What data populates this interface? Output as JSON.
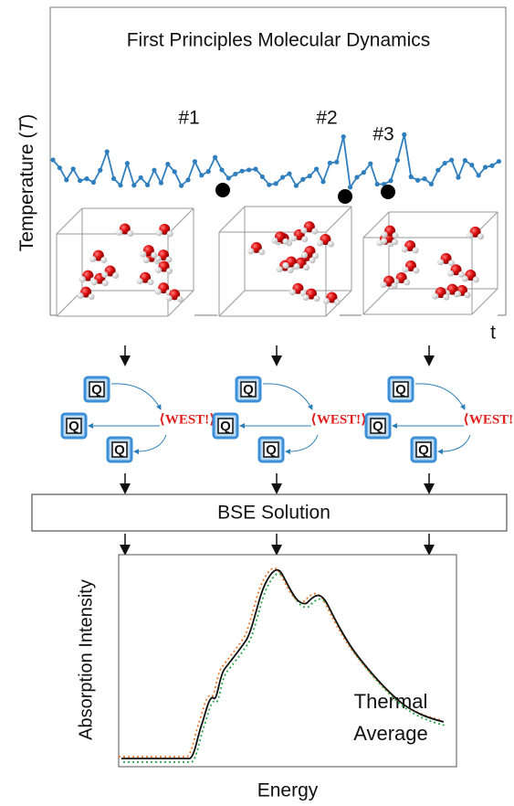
{
  "header": {
    "title": "First Principles Molecular Dynamics"
  },
  "md_panel": {
    "y_label_parts": [
      "Temperature (",
      "T",
      ")"
    ],
    "time_label": "t",
    "snapshots": [
      "#1",
      "#2",
      "#3"
    ]
  },
  "workflow": {
    "q_label": "Q",
    "west_label": "⟨WEST!⟩",
    "bse_label": "BSE Solution"
  },
  "spectrum": {
    "y_label": "Absorption Intensity",
    "x_label": "Energy",
    "annotation_lines": [
      "Thermal",
      "Average"
    ]
  }
}
